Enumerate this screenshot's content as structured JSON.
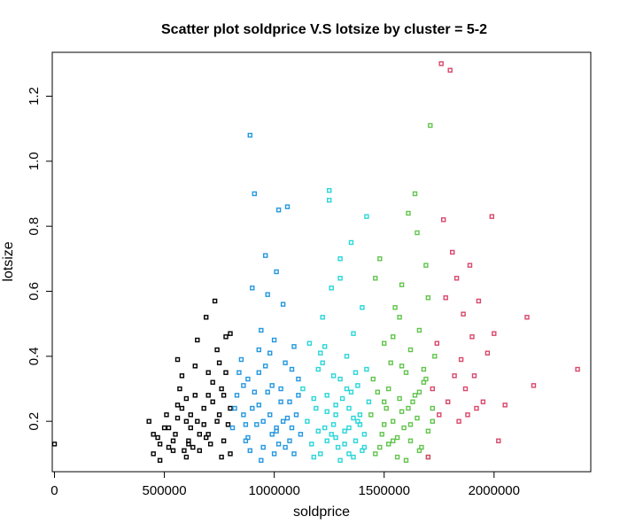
{
  "chart_data": {
    "type": "scatter",
    "title": "Scatter plot soldprice V.S lotsize by cluster = 5-2",
    "xlabel": "soldprice",
    "ylabel": "lotsize",
    "xlim": [
      -10000,
      2440000
    ],
    "ylim": [
      0.045,
      1.335
    ],
    "xticks": [
      0,
      500000,
      1000000,
      1500000,
      2000000
    ],
    "xtick_labels": [
      "0",
      "500000",
      "1000000",
      "1500000",
      "2000000"
    ],
    "yticks": [
      0.2,
      0.4,
      0.6,
      0.8,
      1.0,
      1.2
    ],
    "ytick_labels": [
      "0.2",
      "0.4",
      "0.6",
      "0.8",
      "1.0",
      "1.2"
    ],
    "grid": false,
    "legend": "none",
    "marker": "open-square",
    "series": [
      {
        "color": "#000000",
        "x": [
          0,
          430000,
          450000,
          470000,
          480000,
          510000,
          520000,
          540000,
          550000,
          560000,
          570000,
          580000,
          590000,
          600000,
          610000,
          620000,
          630000,
          640000,
          650000,
          660000,
          680000,
          690000,
          700000,
          710000,
          720000,
          740000,
          750000,
          760000,
          770000,
          780000,
          790000,
          800000,
          450000,
          480000,
          520000,
          560000,
          600000,
          640000,
          680000,
          720000,
          760000,
          800000,
          500000,
          540000,
          580000,
          620000,
          660000,
          700000,
          740000,
          780000,
          560000,
          610000,
          650000,
          690000,
          730000,
          770000,
          600000,
          700000,
          750000,
          800000
        ],
        "y": [
          0.13,
          0.2,
          0.16,
          0.15,
          0.13,
          0.22,
          0.18,
          0.11,
          0.16,
          0.25,
          0.3,
          0.34,
          0.11,
          0.2,
          0.14,
          0.18,
          0.12,
          0.28,
          0.2,
          0.16,
          0.24,
          0.15,
          0.35,
          0.13,
          0.26,
          0.42,
          0.22,
          0.3,
          0.14,
          0.46,
          0.19,
          0.1,
          0.1,
          0.08,
          0.12,
          0.21,
          0.27,
          0.37,
          0.19,
          0.32,
          0.09,
          0.24,
          0.18,
          0.14,
          0.24,
          0.22,
          0.11,
          0.16,
          0.2,
          0.35,
          0.39,
          0.13,
          0.45,
          0.52,
          0.57,
          0.28,
          0.09,
          0.28,
          0.38,
          0.47
        ]
      },
      {
        "color": "#2397e0",
        "x": [
          810000,
          830000,
          850000,
          860000,
          870000,
          880000,
          890000,
          900000,
          910000,
          920000,
          930000,
          940000,
          950000,
          960000,
          970000,
          980000,
          990000,
          1000000,
          1010000,
          1020000,
          1030000,
          1040000,
          1050000,
          1060000,
          1070000,
          1080000,
          1090000,
          1100000,
          1110000,
          1120000,
          820000,
          840000,
          870000,
          890000,
          910000,
          930000,
          950000,
          970000,
          990000,
          1010000,
          1030000,
          1050000,
          1070000,
          1090000,
          1110000,
          880000,
          900000,
          960000,
          1010000,
          1020000,
          1060000,
          930000,
          980000,
          1000000,
          1040000,
          940000,
          860000,
          1080000
        ],
        "y": [
          0.18,
          0.28,
          0.39,
          0.22,
          0.14,
          0.33,
          1.08,
          0.61,
          0.9,
          0.19,
          0.25,
          0.48,
          0.12,
          0.37,
          0.29,
          0.22,
          0.16,
          0.45,
          0.66,
          0.85,
          0.3,
          0.2,
          0.12,
          0.86,
          0.26,
          0.36,
          0.1,
          0.22,
          0.33,
          0.16,
          0.24,
          0.35,
          0.19,
          0.11,
          0.29,
          0.42,
          0.2,
          0.59,
          0.31,
          0.17,
          0.26,
          0.38,
          0.14,
          0.43,
          0.28,
          0.15,
          0.24,
          0.71,
          0.18,
          0.13,
          0.21,
          0.35,
          0.41,
          0.1,
          0.56,
          0.08,
          0.31,
          0.18
        ]
      },
      {
        "color": "#2ad6d8",
        "x": [
          1130000,
          1150000,
          1170000,
          1190000,
          1200000,
          1210000,
          1220000,
          1230000,
          1240000,
          1250000,
          1260000,
          1270000,
          1280000,
          1290000,
          1300000,
          1310000,
          1320000,
          1330000,
          1340000,
          1350000,
          1360000,
          1370000,
          1380000,
          1390000,
          1400000,
          1410000,
          1420000,
          1430000,
          1160000,
          1180000,
          1200000,
          1220000,
          1240000,
          1260000,
          1280000,
          1300000,
          1320000,
          1340000,
          1360000,
          1380000,
          1400000,
          1420000,
          1180000,
          1210000,
          1240000,
          1270000,
          1300000,
          1330000,
          1360000,
          1390000,
          1250000,
          1280000,
          1340000,
          1370000,
          1410000,
          1230000,
          1300000,
          1350000
        ],
        "y": [
          0.3,
          0.2,
          0.13,
          0.24,
          0.36,
          0.1,
          0.52,
          0.18,
          0.28,
          0.91,
          0.16,
          0.34,
          0.22,
          0.12,
          0.7,
          0.27,
          0.17,
          0.4,
          0.1,
          0.75,
          0.21,
          0.14,
          0.31,
          0.19,
          0.55,
          0.12,
          0.83,
          0.26,
          0.44,
          0.09,
          0.17,
          0.38,
          0.23,
          0.61,
          0.15,
          0.33,
          0.13,
          0.24,
          0.47,
          0.2,
          0.11,
          0.36,
          0.27,
          0.41,
          0.14,
          0.19,
          0.64,
          0.3,
          0.09,
          0.22,
          0.88,
          0.25,
          0.18,
          0.35,
          0.16,
          0.43,
          0.08,
          0.29
        ]
      },
      {
        "color": "#61c44c",
        "x": [
          1440000,
          1450000,
          1460000,
          1470000,
          1480000,
          1490000,
          1500000,
          1510000,
          1520000,
          1530000,
          1540000,
          1550000,
          1560000,
          1570000,
          1580000,
          1590000,
          1600000,
          1610000,
          1620000,
          1630000,
          1640000,
          1650000,
          1660000,
          1670000,
          1680000,
          1690000,
          1700000,
          1710000,
          1720000,
          1730000,
          1460000,
          1480000,
          1500000,
          1520000,
          1540000,
          1560000,
          1580000,
          1600000,
          1620000,
          1640000,
          1660000,
          1680000,
          1700000,
          1720000,
          1500000,
          1540000,
          1580000,
          1620000,
          1660000,
          1700000,
          1570000,
          1610000,
          1650000,
          1690000
        ],
        "y": [
          0.22,
          0.33,
          0.1,
          0.29,
          0.7,
          0.16,
          0.44,
          0.24,
          0.13,
          0.38,
          0.2,
          0.55,
          0.09,
          0.27,
          0.62,
          0.18,
          0.35,
          0.84,
          0.14,
          0.26,
          0.9,
          0.21,
          0.48,
          0.12,
          0.32,
          0.68,
          0.17,
          1.11,
          0.24,
          0.4,
          0.64,
          0.12,
          0.19,
          0.3,
          0.46,
          0.15,
          0.23,
          0.08,
          0.42,
          0.28,
          0.11,
          0.36,
          0.58,
          0.2,
          0.26,
          0.14,
          0.37,
          0.19,
          0.29,
          0.09,
          0.52,
          0.24,
          0.78,
          0.33
        ]
      },
      {
        "color": "#d9476b",
        "x": [
          1700000,
          1720000,
          1740000,
          1750000,
          1760000,
          1770000,
          1780000,
          1790000,
          1800000,
          1810000,
          1820000,
          1830000,
          1840000,
          1850000,
          1860000,
          1870000,
          1880000,
          1890000,
          1900000,
          1910000,
          1920000,
          1930000,
          1950000,
          1970000,
          1990000,
          2000000,
          2020000,
          2050000,
          2150000,
          2180000,
          2380000
        ],
        "y": [
          0.09,
          0.3,
          0.44,
          0.22,
          1.3,
          0.82,
          0.58,
          0.26,
          1.28,
          0.72,
          0.34,
          0.64,
          0.2,
          0.39,
          0.53,
          0.3,
          0.22,
          0.68,
          0.46,
          0.34,
          0.24,
          0.57,
          0.26,
          0.41,
          0.83,
          0.47,
          0.14,
          0.25,
          0.52,
          0.31,
          0.36
        ]
      }
    ]
  }
}
